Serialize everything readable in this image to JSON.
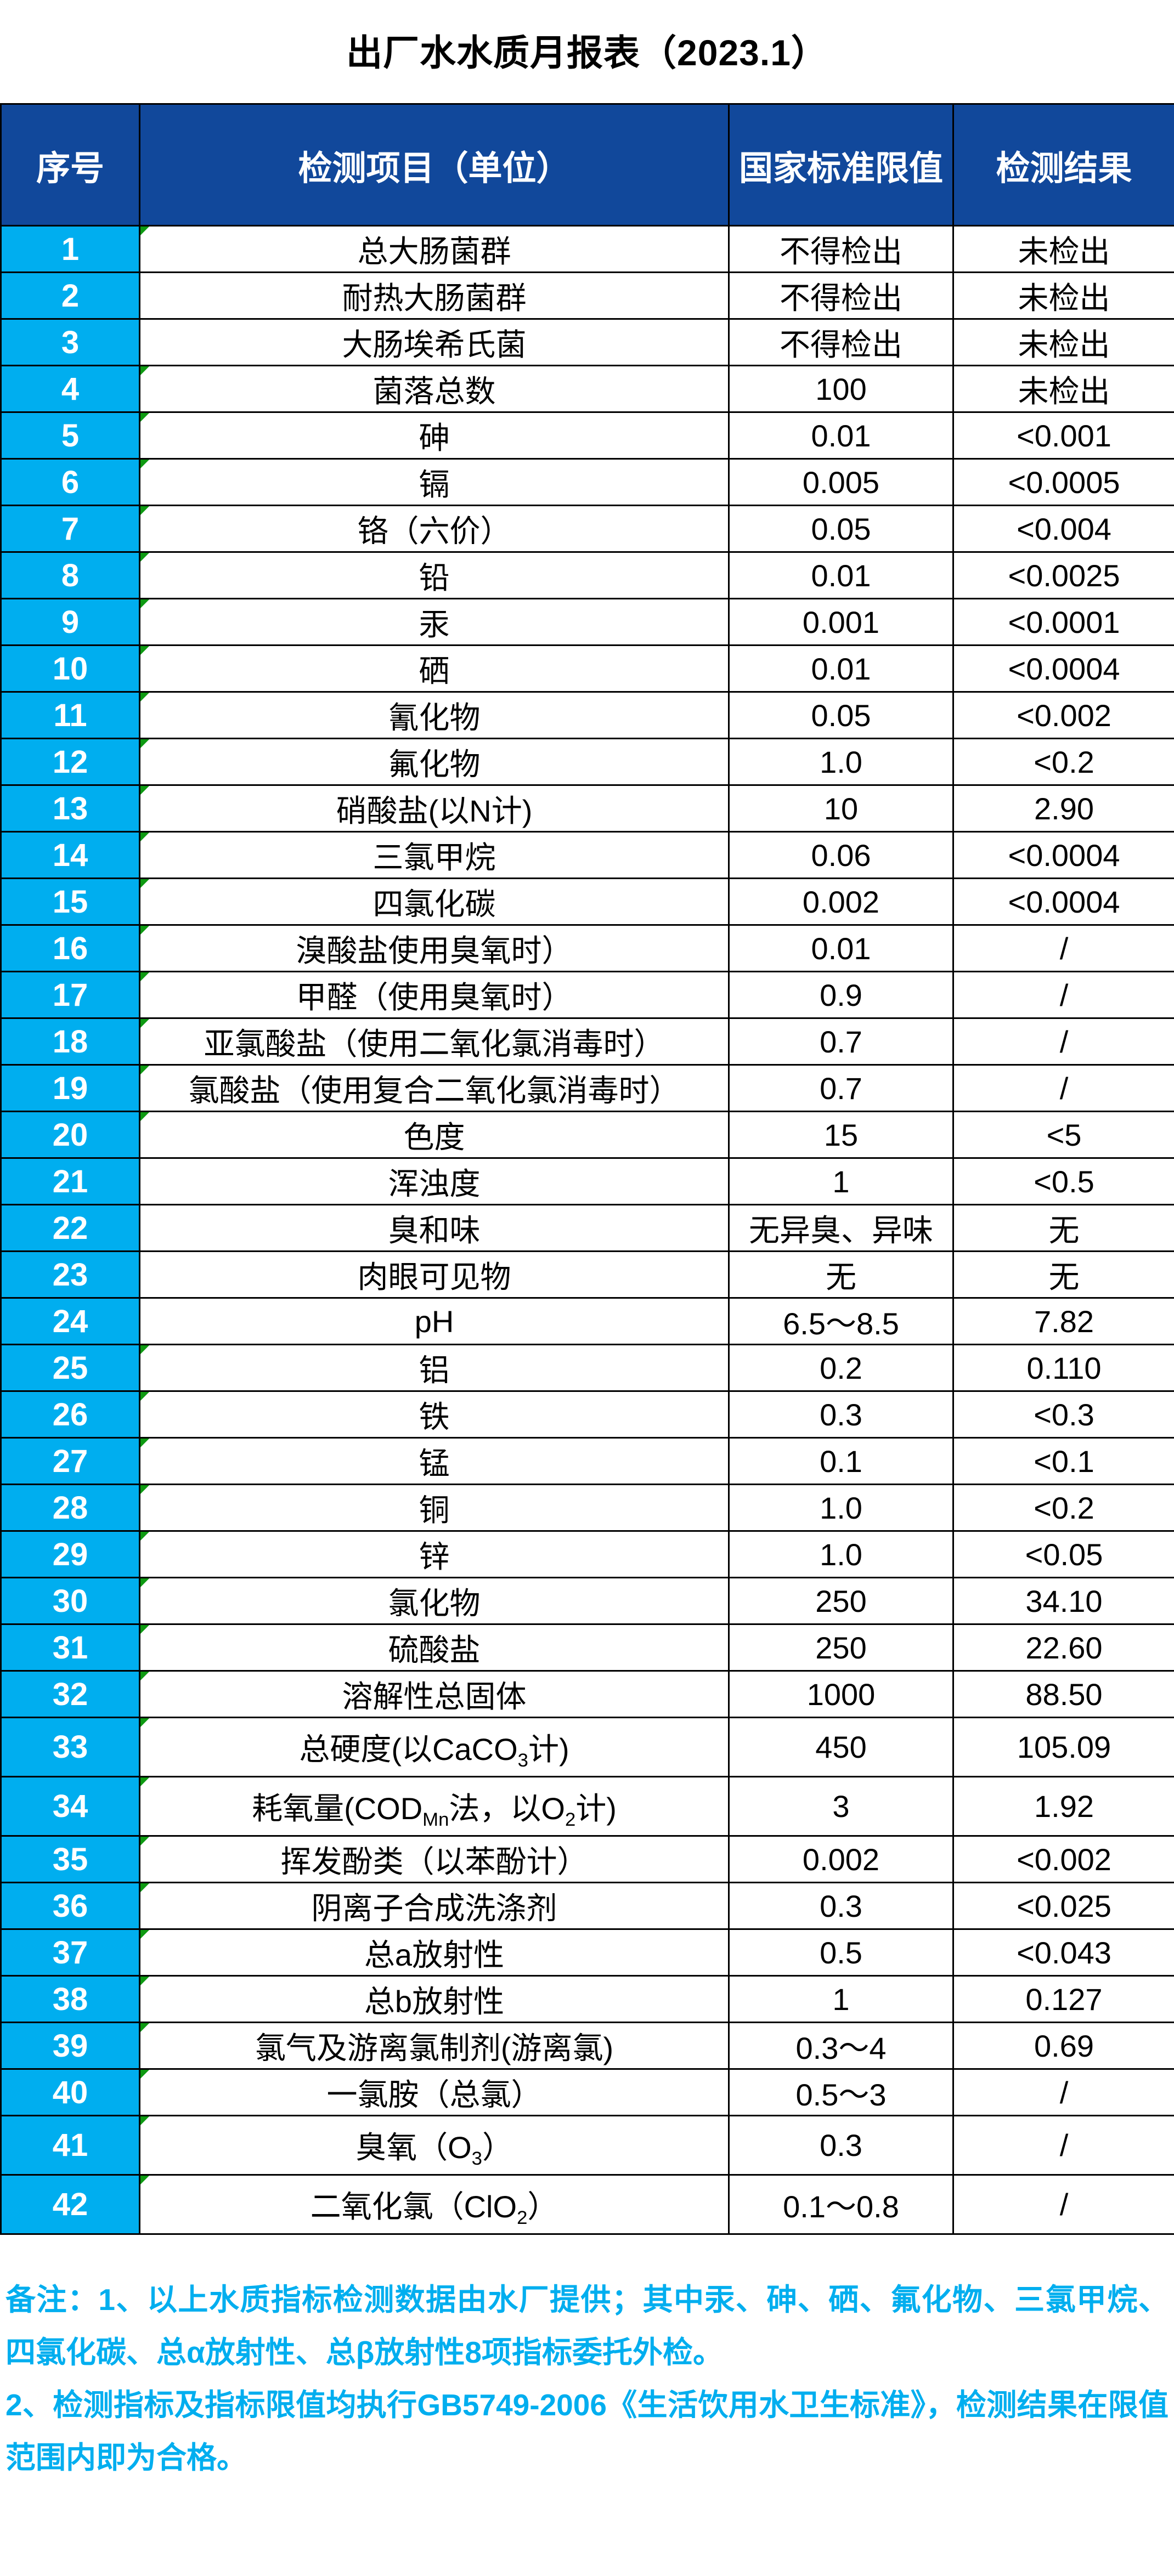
{
  "title": "出厂水水质月报表（2023.1）",
  "colors": {
    "header_bg": "#11489B",
    "index_bg": "#00AEEF",
    "notes_text": "#00AEEF",
    "marker_green": "#0E9A12",
    "grid": "#000000"
  },
  "table": {
    "headers": [
      "序号",
      "检测项目（单位）",
      "国家标准限值",
      "检测结果"
    ],
    "rows": [
      {
        "no": "1",
        "item": "总大肠菌群",
        "limit": "不得检出",
        "result": "未检出",
        "marker": true
      },
      {
        "no": "2",
        "item": "耐热大肠菌群",
        "limit": "不得检出",
        "result": "未检出",
        "marker": false
      },
      {
        "no": "3",
        "item": "大肠埃希氏菌",
        "limit": "不得检出",
        "result": "未检出",
        "marker": false
      },
      {
        "no": "4",
        "item": "菌落总数",
        "limit": "100",
        "result": "未检出",
        "marker": true
      },
      {
        "no": "5",
        "item": "砷",
        "limit": "0.01",
        "result": "<0.001",
        "marker": true
      },
      {
        "no": "6",
        "item": "镉",
        "limit": "0.005",
        "result": "<0.0005",
        "marker": true
      },
      {
        "no": "7",
        "item": "铬（六价）",
        "limit": "0.05",
        "result": "<0.004",
        "marker": true
      },
      {
        "no": "8",
        "item": "铅",
        "limit": "0.01",
        "result": "<0.0025",
        "marker": true
      },
      {
        "no": "9",
        "item": "汞",
        "limit": "0.001",
        "result": "<0.0001",
        "marker": true
      },
      {
        "no": "10",
        "item": "硒",
        "limit": "0.01",
        "result": "<0.0004",
        "marker": true
      },
      {
        "no": "11",
        "item": "氰化物",
        "limit": "0.05",
        "result": "<0.002",
        "marker": true
      },
      {
        "no": "12",
        "item": "氟化物",
        "limit": "1.0",
        "result": "<0.2",
        "marker": true
      },
      {
        "no": "13",
        "item": "硝酸盐(以N计)",
        "limit": "10",
        "result": "2.90",
        "marker": true
      },
      {
        "no": "14",
        "item": "三氯甲烷",
        "limit": "0.06",
        "result": "<0.0004",
        "marker": true
      },
      {
        "no": "15",
        "item": "四氯化碳",
        "limit": "0.002",
        "result": "<0.0004",
        "marker": true
      },
      {
        "no": "16",
        "item": "溴酸盐使用臭氧时）",
        "limit": "0.01",
        "result": "/",
        "marker": true
      },
      {
        "no": "17",
        "item": "甲醛（使用臭氧时）",
        "limit": "0.9",
        "result": "/",
        "marker": true
      },
      {
        "no": "18",
        "item": "亚氯酸盐（使用二氧化氯消毒时）",
        "limit": "0.7",
        "result": "/",
        "marker": true
      },
      {
        "no": "19",
        "item": "氯酸盐（使用复合二氧化氯消毒时）",
        "limit": "0.7",
        "result": "/",
        "marker": true
      },
      {
        "no": "20",
        "item": "色度",
        "limit": "15",
        "result": "<5",
        "marker": true
      },
      {
        "no": "21",
        "item": "浑浊度",
        "limit": "1",
        "result": "<0.5",
        "marker": false
      },
      {
        "no": "22",
        "item": "臭和味",
        "limit": "无异臭、异味",
        "result": "无",
        "marker": false
      },
      {
        "no": "23",
        "item": "肉眼可见物",
        "limit": "无",
        "result": "无",
        "marker": false
      },
      {
        "no": "24",
        "item": "pH",
        "limit": "6.5～8.5",
        "result": "7.82",
        "marker": false
      },
      {
        "no": "25",
        "item": "铝",
        "limit": "0.2",
        "result": "0.110",
        "marker": true
      },
      {
        "no": "26",
        "item": "铁",
        "limit": "0.3",
        "result": "<0.3",
        "marker": true
      },
      {
        "no": "27",
        "item": "锰",
        "limit": "0.1",
        "result": "<0.1",
        "marker": true
      },
      {
        "no": "28",
        "item": "铜",
        "limit": "1.0",
        "result": "<0.2",
        "marker": true
      },
      {
        "no": "29",
        "item": "锌",
        "limit": "1.0",
        "result": "<0.05",
        "marker": true
      },
      {
        "no": "30",
        "item": "氯化物",
        "limit": "250",
        "result": "34.10",
        "marker": true
      },
      {
        "no": "31",
        "item": "硫酸盐",
        "limit": "250",
        "result": "22.60",
        "marker": true
      },
      {
        "no": "32",
        "item": "溶解性总固体",
        "limit": "1000",
        "result": "88.50",
        "marker": true
      },
      {
        "no": "33",
        "item": "总硬度(以CaCO~3~计)",
        "limit": "450",
        "result": "105.09",
        "marker": true
      },
      {
        "no": "34",
        "item": "耗氧量(COD~Mn~法，以O~2~计)",
        "limit": "3",
        "result": "1.92",
        "marker": true
      },
      {
        "no": "35",
        "item": "挥发酚类（以苯酚计）",
        "limit": "0.002",
        "result": "<0.002",
        "marker": true
      },
      {
        "no": "36",
        "item": "阴离子合成洗涤剂",
        "limit": "0.3",
        "result": "<0.025",
        "marker": true
      },
      {
        "no": "37",
        "item": "总a放射性",
        "limit": "0.5",
        "result": "<0.043",
        "marker": true
      },
      {
        "no": "38",
        "item": "总b放射性",
        "limit": "1",
        "result": "0.127",
        "marker": true
      },
      {
        "no": "39",
        "item": "氯气及游离氯制剂(游离氯)",
        "limit": "0.3～4",
        "result": "0.69",
        "marker": true
      },
      {
        "no": "40",
        "item": "一氯胺（总氯）",
        "limit": "0.5～3",
        "result": "/",
        "marker": true
      },
      {
        "no": "41",
        "item": "臭氧（O~3~）",
        "limit": "0.3",
        "result": "/",
        "marker": true
      },
      {
        "no": "42",
        "item": "二氧化氯（ClO~2~）",
        "limit": "0.1～0.8",
        "result": "/",
        "marker": true
      }
    ]
  },
  "notes": [
    "备注：1、以上水质指标检测数据由水厂提供；其中汞、砷、硒、氟化物、三氯甲烷、四氯化碳、总α放射性、总β放射性8项指标委托外检。",
    "2、检测指标及指标限值均执行GB5749-2006《生活饮用水卫生标准》，检测结果在限值范围内即为合格。"
  ]
}
